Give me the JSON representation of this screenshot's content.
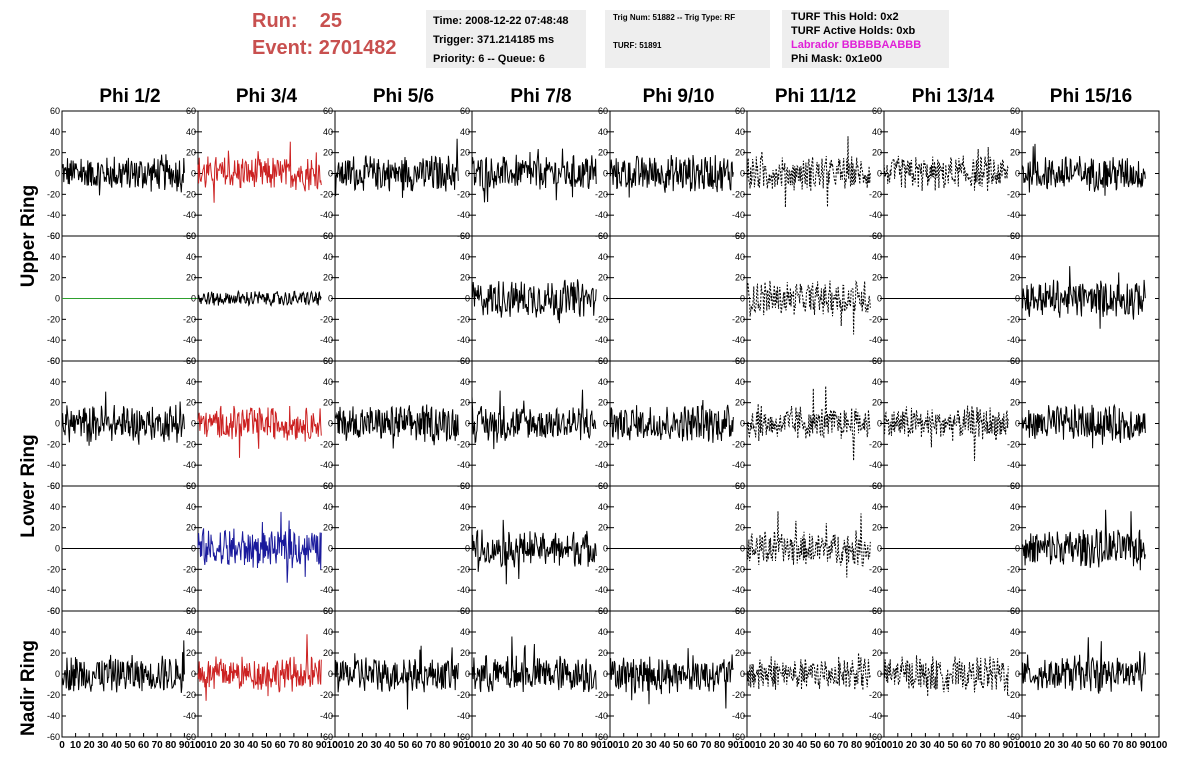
{
  "header": {
    "run_label": "Run:",
    "run_value": "25",
    "event_label": "Event:",
    "event_value": "2701482",
    "run_color": "#c8504f"
  },
  "time_box": {
    "time": "Time: 2008-12-22 07:48:48",
    "trigger": "Trigger: 371.214185 ms",
    "priority": "Priority: 6 -- Queue: 6"
  },
  "trig_box": {
    "trig": "Trig Num: 51882 -- Trig Type: RF",
    "turf": "TURF: 51891"
  },
  "turf_box": {
    "this_hold": "TURF This Hold: 0x2",
    "active_holds": "TURF Active Holds: 0xb",
    "labrador": "Labrador BBBBBAABBB",
    "phi_mask": "Phi Mask: 0x1e00",
    "labrador_color": "#e020d8"
  },
  "columns": [
    "Phi 1/2",
    "Phi 3/4",
    "Phi 5/6",
    "Phi 7/8",
    "Phi 9/10",
    "Phi 11/12",
    "Phi 13/14",
    "Phi 15/16"
  ],
  "rings": [
    "Upper Ring",
    "Lower Ring",
    "Nadir Ring"
  ],
  "colors": {
    "trace_black": "#000000",
    "trace_red": "#cc2222",
    "trace_blue": "#1a1a9c",
    "trace_green": "#2ea02e"
  },
  "chart_data": {
    "type": "line",
    "panel_rows": 5,
    "panel_cols": 8,
    "y_ticks": [
      "60",
      "40",
      "20",
      "0",
      "-20",
      "-40",
      "-60"
    ],
    "ylim": [
      -60,
      60
    ],
    "x_ticks": [
      "0",
      "10",
      "20",
      "30",
      "40",
      "50",
      "60",
      "70",
      "80",
      "90",
      "100"
    ],
    "xlim": [
      0,
      100
    ],
    "traces": [
      [
        "black",
        "red",
        "black",
        "black",
        "black",
        "dashed",
        "dashed",
        "black"
      ],
      [
        "flat-green",
        "black-small",
        "flat",
        "black",
        "flat",
        "dashed",
        "flat",
        "black"
      ],
      [
        "black",
        "red",
        "black",
        "black",
        "black",
        "dashed",
        "dashed",
        "black"
      ],
      [
        "flat",
        "blue",
        "flat",
        "black",
        "flat",
        "dashed",
        "flat",
        "black"
      ],
      [
        "black",
        "red",
        "black",
        "black",
        "black",
        "dashed",
        "dashed",
        "black"
      ]
    ]
  }
}
